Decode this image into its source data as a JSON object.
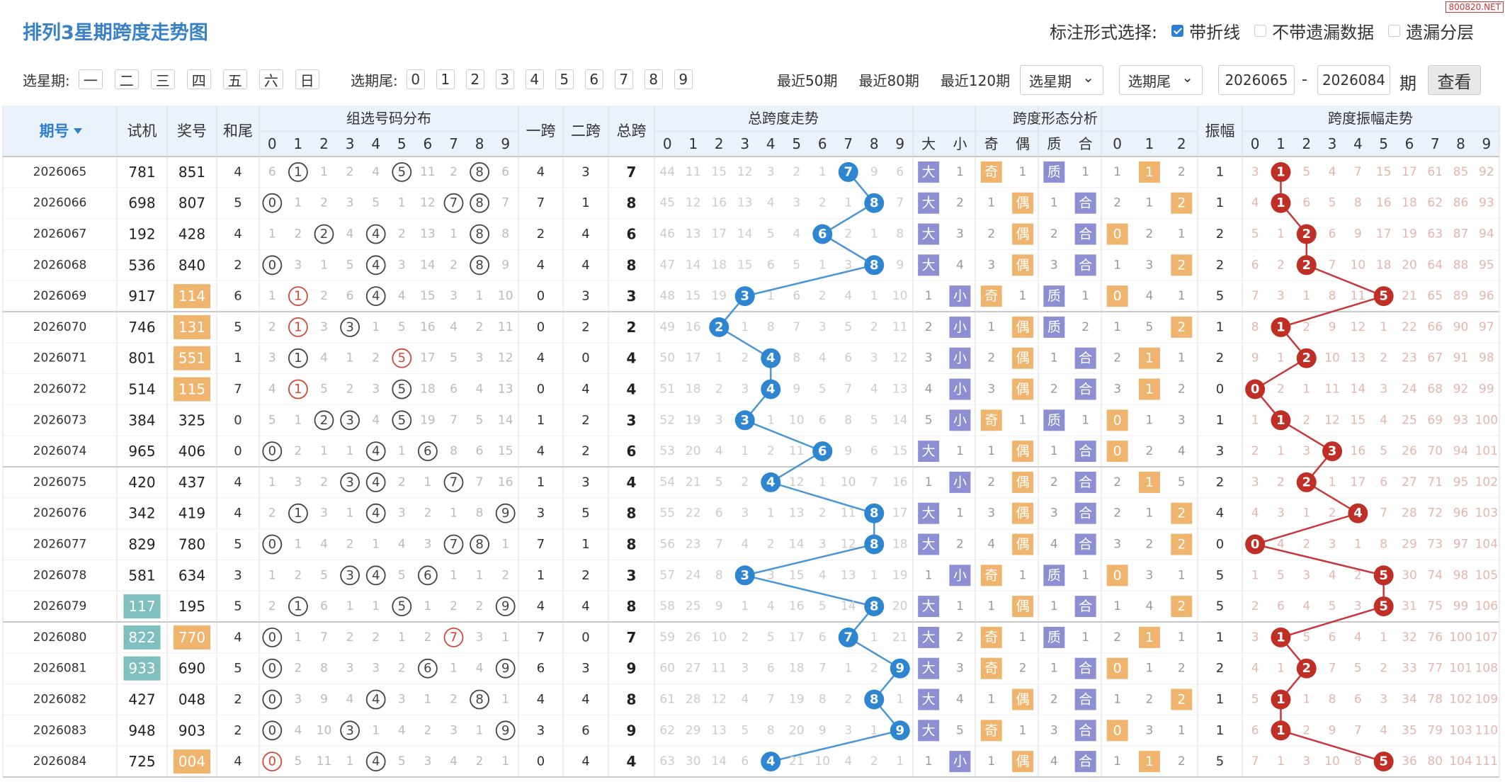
{
  "header": {
    "title": "排列3星期跨度走势图",
    "mark_label": "标注形式选择:",
    "mark_options": [
      "带折线",
      "不带遗漏数据",
      "遗漏分层"
    ],
    "watermark": "800820.NET"
  },
  "toolbar": {
    "weekday_label": "选星期:",
    "weekdays": [
      "一",
      "二",
      "三",
      "四",
      "五",
      "六",
      "日"
    ],
    "tail_label": "选期尾:",
    "tails": [
      0,
      1,
      2,
      3,
      4,
      5,
      6,
      7,
      8,
      9
    ],
    "recent": [
      "最近50期",
      "最近80期",
      "最近120期"
    ],
    "weekday_select": "选星期",
    "tail_select": "选期尾",
    "from": "2026065",
    "range_sep": "-",
    "to": "2026084",
    "period_unit": "期",
    "submit": "查看"
  },
  "table": {
    "headers": {
      "period": "期号",
      "trial": "试机",
      "draw": "奖号",
      "tail": "和尾",
      "span1": "一跨",
      "span2": "二跨",
      "span": "总跨",
      "amplitude": "振幅"
    },
    "groups": {
      "distribution": "组选号码分布",
      "span_trend": "总跨度走势",
      "shape": "跨度形态分析",
      "amplitude_trend": "跨度振幅走势"
    },
    "digits": [
      0,
      1,
      2,
      3,
      4,
      5,
      6,
      7,
      8,
      9
    ],
    "shape_headers": [
      "大",
      "小",
      "奇",
      "偶",
      "质",
      "合",
      0,
      1,
      2
    ],
    "rows": [
      [
        "2026065",
        781,
        851,
        4,
        6,
        1,
        1,
        2,
        4,
        5,
        11,
        2,
        8,
        6,
        4,
        3,
        7,
        44,
        11,
        15,
        12,
        3,
        2,
        1,
        7,
        9,
        6,
        "大",
        1,
        "奇",
        1,
        "质",
        1,
        1,
        1,
        2,
        1,
        3,
        1,
        5,
        4,
        7,
        15,
        17,
        61,
        85,
        92
      ],
      [
        "2026066",
        698,
        807,
        5,
        0,
        1,
        2,
        3,
        5,
        1,
        12,
        7,
        8,
        7,
        7,
        1,
        8,
        45,
        12,
        16,
        13,
        4,
        3,
        2,
        1,
        8,
        7,
        "大",
        2,
        1,
        "偶",
        1,
        "合",
        2,
        1,
        2,
        1,
        4,
        1,
        6,
        5,
        8,
        16,
        18,
        62,
        86,
        93
      ],
      [
        "2026067",
        192,
        428,
        4,
        1,
        2,
        2,
        4,
        4,
        2,
        13,
        1,
        8,
        8,
        2,
        4,
        6,
        46,
        13,
        17,
        14,
        5,
        4,
        6,
        2,
        1,
        8,
        "大",
        3,
        2,
        "偶",
        2,
        "合",
        0,
        2,
        1,
        2,
        5,
        1,
        2,
        6,
        9,
        17,
        19,
        63,
        87,
        94
      ],
      [
        "2026068",
        536,
        840,
        2,
        0,
        3,
        1,
        5,
        4,
        3,
        14,
        2,
        8,
        9,
        4,
        4,
        8,
        47,
        14,
        18,
        15,
        6,
        5,
        1,
        3,
        8,
        9,
        "大",
        4,
        3,
        "偶",
        3,
        "合",
        1,
        3,
        2,
        2,
        6,
        2,
        2,
        7,
        10,
        18,
        20,
        64,
        88,
        95
      ],
      [
        "2026069",
        917,
        114,
        6,
        1,
        1,
        2,
        6,
        4,
        4,
        15,
        3,
        1,
        10,
        0,
        3,
        3,
        48,
        15,
        19,
        3,
        1,
        6,
        2,
        4,
        1,
        10,
        1,
        "小",
        "奇",
        1,
        "质",
        1,
        0,
        4,
        1,
        5,
        7,
        3,
        1,
        8,
        11,
        5,
        21,
        65,
        89,
        96
      ],
      [
        "2026070",
        746,
        131,
        5,
        2,
        1,
        3,
        3,
        1,
        5,
        16,
        4,
        2,
        11,
        0,
        2,
        2,
        49,
        16,
        2,
        1,
        8,
        7,
        3,
        5,
        2,
        11,
        2,
        "小",
        1,
        "偶",
        "质",
        2,
        1,
        5,
        2,
        1,
        8,
        1,
        2,
        9,
        12,
        1,
        22,
        66,
        90,
        97
      ],
      [
        "2026071",
        801,
        551,
        1,
        3,
        1,
        4,
        1,
        2,
        5,
        17,
        5,
        3,
        12,
        4,
        0,
        4,
        50,
        17,
        1,
        2,
        4,
        8,
        4,
        6,
        3,
        12,
        3,
        "小",
        2,
        "偶",
        1,
        "合",
        2,
        1,
        1,
        2,
        9,
        1,
        2,
        10,
        13,
        2,
        23,
        67,
        91,
        98
      ],
      [
        "2026072",
        514,
        115,
        7,
        4,
        1,
        5,
        2,
        3,
        5,
        18,
        6,
        4,
        13,
        0,
        4,
        4,
        51,
        18,
        2,
        3,
        4,
        9,
        5,
        7,
        4,
        13,
        4,
        "小",
        3,
        "偶",
        2,
        "合",
        3,
        1,
        2,
        0,
        0,
        2,
        1,
        11,
        14,
        3,
        24,
        68,
        92,
        99
      ],
      [
        "2026073",
        384,
        325,
        0,
        5,
        1,
        2,
        3,
        4,
        5,
        19,
        7,
        5,
        14,
        1,
        2,
        3,
        52,
        19,
        3,
        3,
        1,
        10,
        6,
        8,
        5,
        14,
        5,
        "小",
        "奇",
        1,
        "质",
        1,
        0,
        1,
        3,
        1,
        1,
        1,
        2,
        12,
        15,
        4,
        25,
        69,
        93,
        100
      ],
      [
        "2026074",
        965,
        406,
        0,
        0,
        2,
        1,
        1,
        4,
        1,
        6,
        8,
        6,
        15,
        4,
        2,
        6,
        53,
        20,
        4,
        1,
        2,
        11,
        6,
        9,
        6,
        15,
        "大",
        1,
        1,
        "偶",
        1,
        "合",
        0,
        2,
        4,
        3,
        2,
        1,
        3,
        3,
        16,
        5,
        26,
        70,
        94,
        101
      ],
      [
        "2026075",
        420,
        437,
        4,
        1,
        3,
        2,
        3,
        4,
        2,
        1,
        7,
        7,
        16,
        1,
        3,
        4,
        54,
        21,
        5,
        2,
        4,
        12,
        1,
        10,
        7,
        16,
        1,
        "小",
        2,
        "偶",
        2,
        "合",
        2,
        1,
        5,
        2,
        3,
        2,
        2,
        1,
        17,
        6,
        27,
        71,
        95,
        102
      ],
      [
        "2026076",
        342,
        419,
        4,
        2,
        1,
        3,
        1,
        4,
        3,
        2,
        1,
        8,
        9,
        3,
        5,
        8,
        55,
        22,
        6,
        3,
        1,
        13,
        2,
        11,
        8,
        17,
        "大",
        1,
        3,
        "偶",
        3,
        "合",
        2,
        1,
        2,
        4,
        4,
        3,
        1,
        2,
        4,
        7,
        28,
        72,
        96,
        103
      ],
      [
        "2026077",
        829,
        780,
        5,
        0,
        1,
        4,
        2,
        1,
        4,
        3,
        7,
        8,
        1,
        7,
        1,
        8,
        56,
        23,
        7,
        4,
        2,
        14,
        3,
        12,
        8,
        18,
        "大",
        2,
        4,
        "偶",
        4,
        "合",
        3,
        2,
        2,
        0,
        0,
        4,
        2,
        3,
        1,
        8,
        29,
        73,
        97,
        104
      ],
      [
        "2026078",
        581,
        634,
        3,
        1,
        2,
        5,
        3,
        4,
        5,
        6,
        1,
        1,
        2,
        1,
        2,
        3,
        57,
        24,
        8,
        3,
        3,
        15,
        4,
        13,
        1,
        19,
        1,
        "小",
        "奇",
        1,
        "质",
        1,
        0,
        3,
        1,
        5,
        1,
        5,
        3,
        4,
        2,
        5,
        30,
        74,
        98,
        105
      ],
      [
        "2026079",
        117,
        195,
        5,
        2,
        1,
        6,
        1,
        1,
        5,
        1,
        2,
        2,
        9,
        4,
        4,
        8,
        58,
        25,
        9,
        1,
        4,
        16,
        5,
        14,
        8,
        20,
        "大",
        1,
        1,
        "偶",
        1,
        "合",
        1,
        4,
        2,
        5,
        2,
        6,
        4,
        5,
        3,
        5,
        31,
        75,
        99,
        106
      ],
      [
        "2026080",
        822,
        770,
        4,
        0,
        1,
        7,
        2,
        2,
        1,
        2,
        7,
        3,
        1,
        7,
        0,
        7,
        59,
        26,
        10,
        2,
        5,
        17,
        6,
        7,
        1,
        21,
        "大",
        2,
        "奇",
        1,
        "质",
        1,
        2,
        1,
        1,
        1,
        3,
        1,
        5,
        6,
        4,
        1,
        32,
        76,
        100,
        107
      ],
      [
        "2026081",
        933,
        690,
        5,
        0,
        2,
        8,
        3,
        3,
        2,
        6,
        1,
        4,
        9,
        6,
        3,
        9,
        60,
        27,
        11,
        3,
        6,
        18,
        7,
        1,
        2,
        9,
        "大",
        3,
        "奇",
        2,
        1,
        "合",
        0,
        1,
        2,
        2,
        4,
        1,
        2,
        7,
        5,
        2,
        33,
        77,
        101,
        108
      ],
      [
        "2026082",
        427,
        "048",
        2,
        0,
        3,
        9,
        4,
        4,
        3,
        1,
        2,
        8,
        1,
        4,
        4,
        8,
        61,
        28,
        12,
        4,
        7,
        19,
        8,
        2,
        8,
        1,
        "大",
        4,
        1,
        "偶",
        2,
        "合",
        1,
        2,
        2,
        1,
        5,
        1,
        1,
        8,
        6,
        3,
        34,
        78,
        102,
        109
      ],
      [
        "2026083",
        948,
        903,
        2,
        0,
        4,
        10,
        3,
        1,
        4,
        2,
        3,
        1,
        9,
        3,
        6,
        9,
        62,
        29,
        13,
        5,
        8,
        20,
        9,
        3,
        1,
        9,
        "大",
        5,
        "奇",
        1,
        3,
        "合",
        0,
        3,
        1,
        1,
        6,
        1,
        2,
        9,
        7,
        4,
        35,
        79,
        103,
        110
      ],
      [
        "2026084",
        725,
        "004",
        4,
        0,
        5,
        11,
        1,
        4,
        5,
        3,
        4,
        2,
        1,
        0,
        4,
        4,
        63,
        30,
        14,
        6,
        4,
        21,
        10,
        4,
        2,
        1,
        1,
        "小",
        1,
        "偶",
        4,
        "合",
        1,
        1,
        2,
        5,
        7,
        1,
        3,
        10,
        8,
        5,
        36,
        80,
        104,
        111
      ]
    ]
  }
}
